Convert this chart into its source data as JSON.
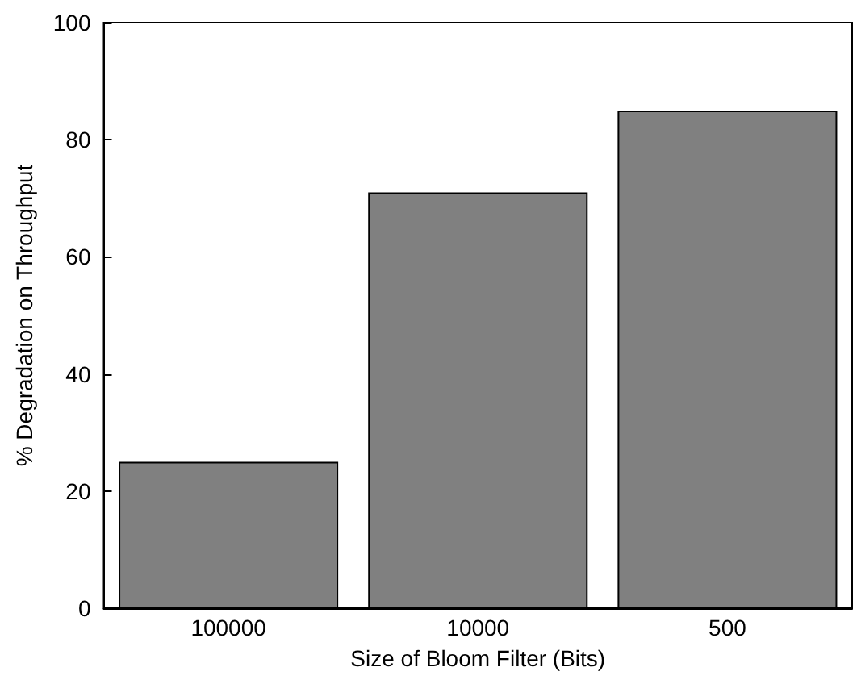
{
  "chart_data": {
    "type": "bar",
    "xlabel": "Size of Bloom Filter (Bits)",
    "ylabel": "% Degradation on Throughput",
    "categories": [
      "100000",
      "10000",
      "500"
    ],
    "values": [
      25,
      71,
      85
    ],
    "color": "#808080",
    "ylim": [
      0,
      100
    ],
    "yticks": [
      0,
      20,
      40,
      60,
      80,
      100
    ],
    "grid": false
  }
}
